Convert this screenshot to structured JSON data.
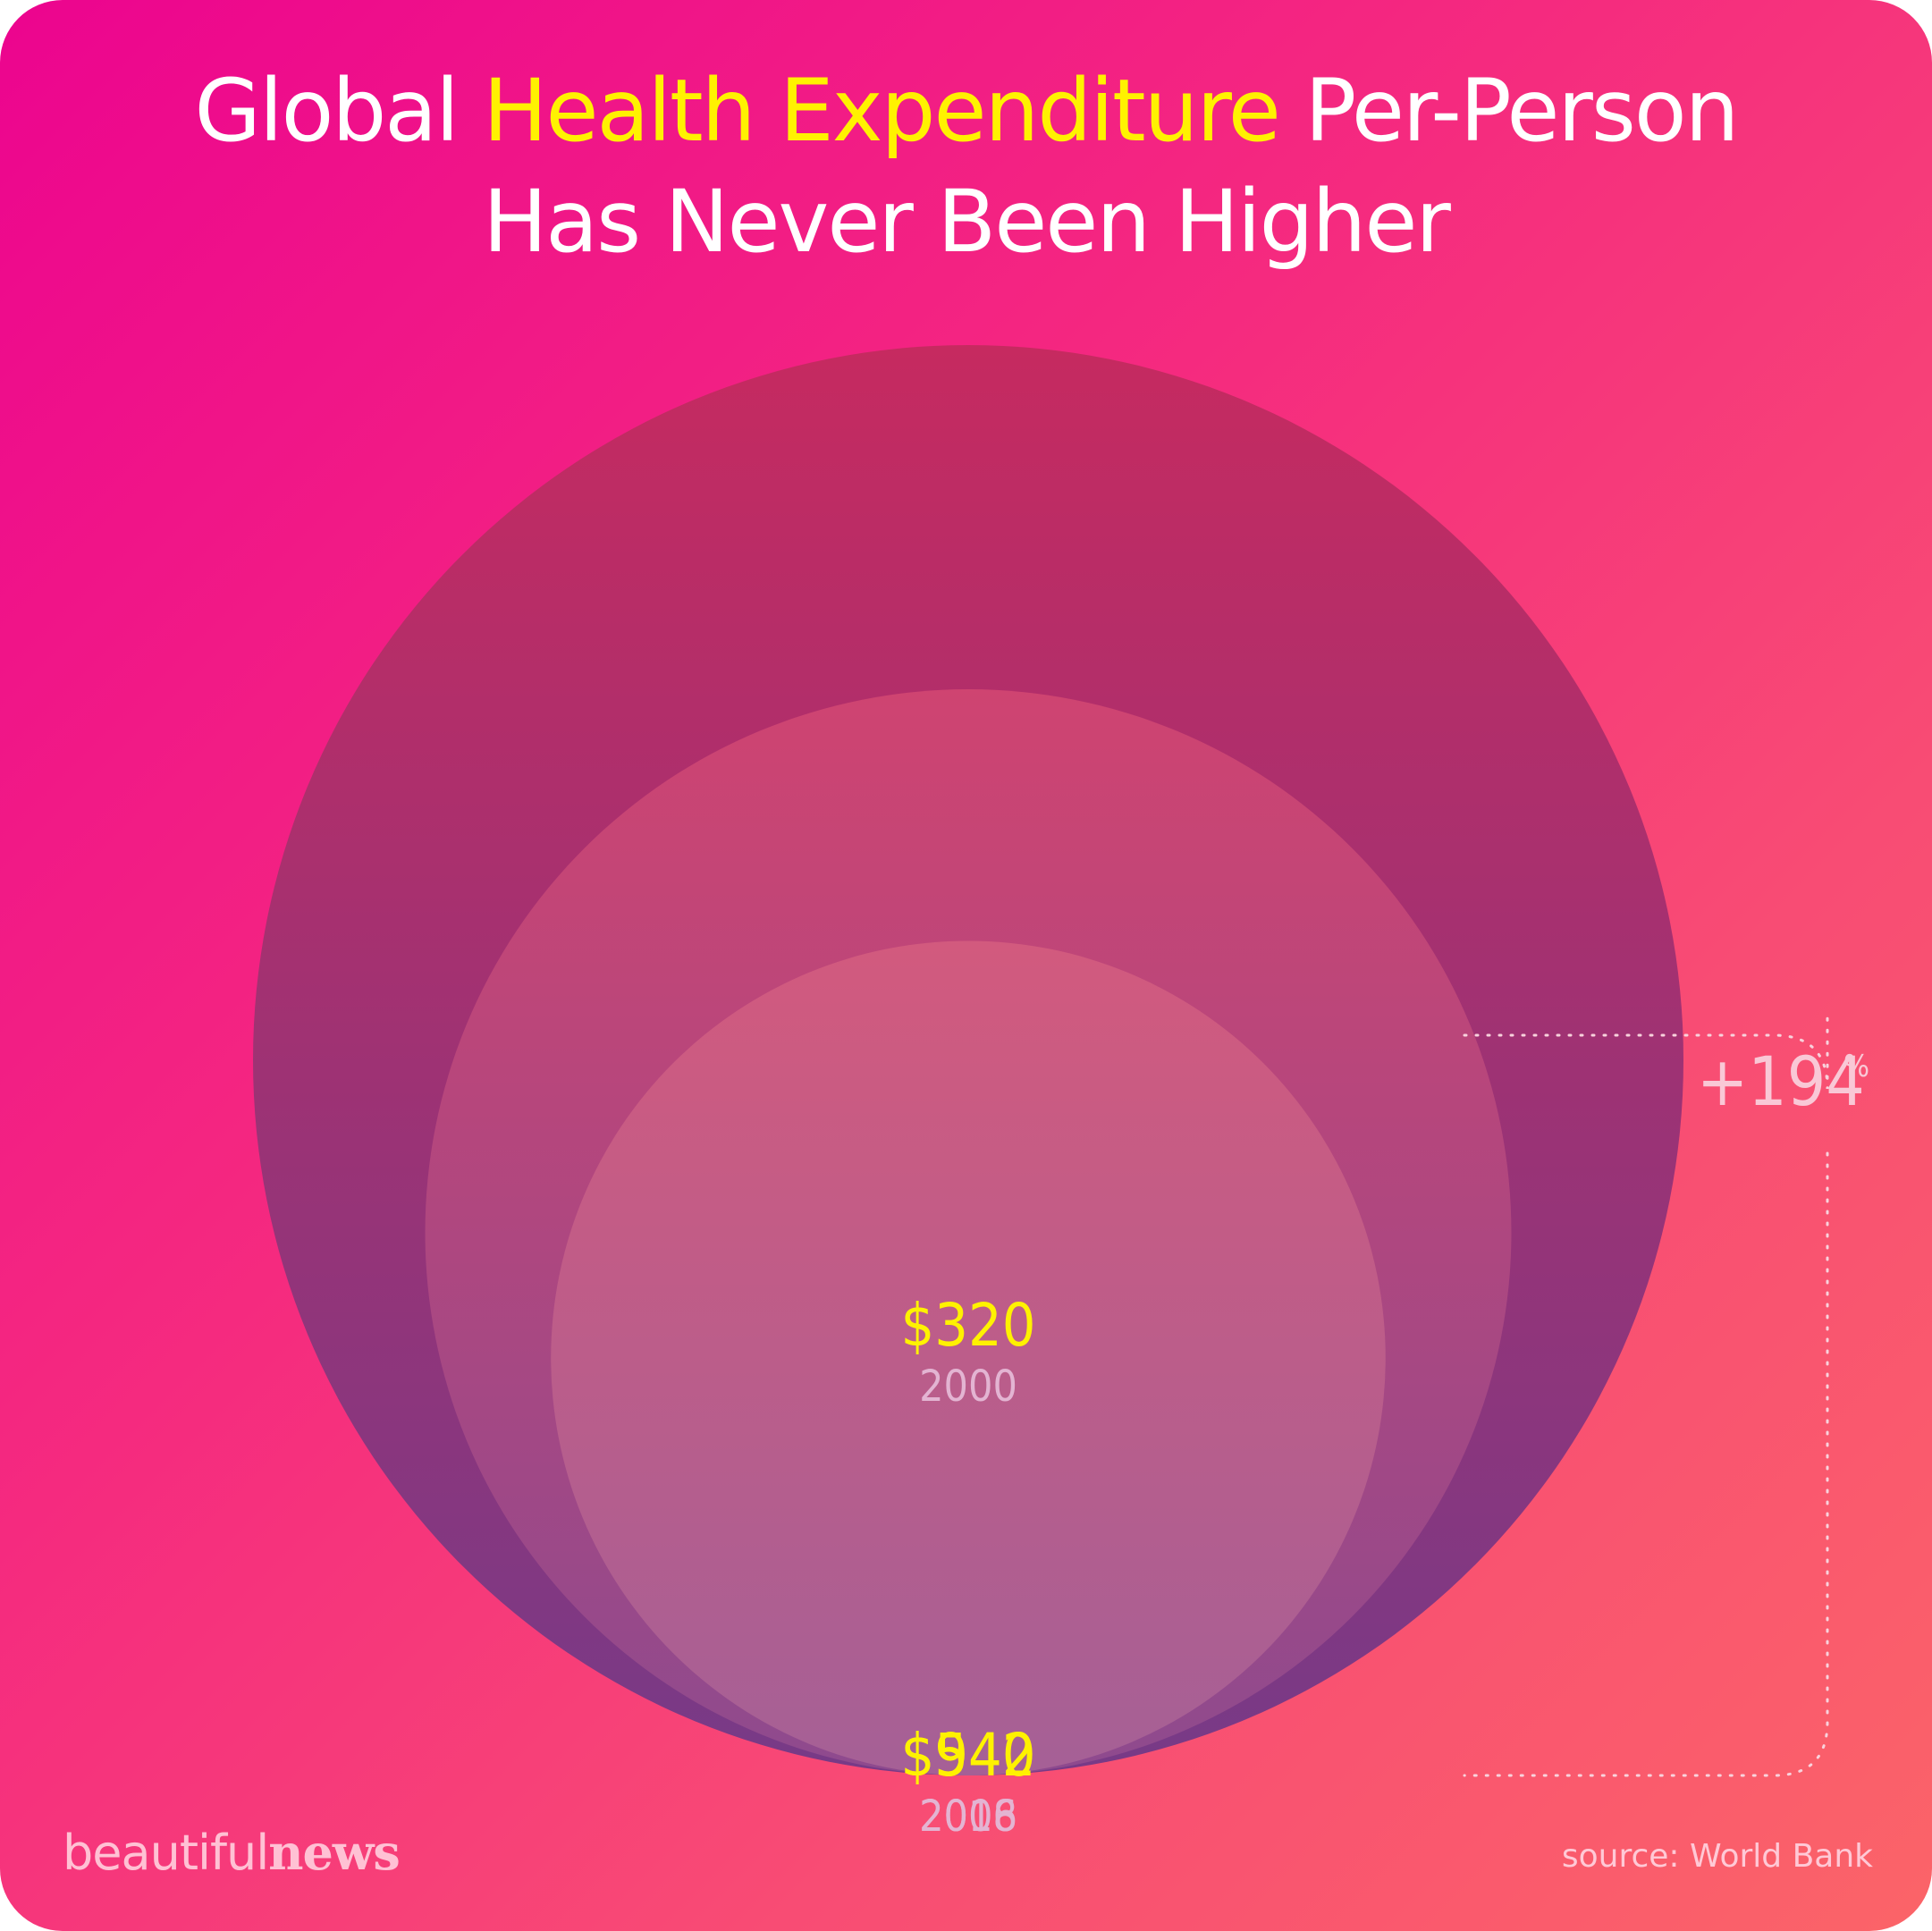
{
  "title": {
    "line1_pre": "Global ",
    "line1_highlight": "Health Expenditure",
    "line1_post": " Per-Person",
    "line2": "Has Never Been Higher"
  },
  "brand": {
    "light": "beautiful",
    "bold": "news"
  },
  "source": "source: World Bank",
  "colors": {
    "background_start": "#ec048f",
    "background_end": "#fb6468",
    "value_label": "#fff200",
    "year_label": "#e3b4d2",
    "circle_2016_top": "#c62a60",
    "circle_2016_bottom": "#773a87",
    "circle_2008_top": "#cf4471",
    "circle_2008_bottom": "#8e4a8e",
    "circle_2000_top": "#d25a7e",
    "circle_2000_bottom": "#a56096"
  },
  "chart_data": {
    "type": "nested-bubble",
    "unit": "USD per person",
    "points": [
      {
        "year": "2016",
        "value": 940,
        "label": "$940"
      },
      {
        "year": "2008",
        "value": 542,
        "label": "$542"
      },
      {
        "year": "2000",
        "value": 320,
        "label": "$320"
      }
    ],
    "change": {
      "value": "+194",
      "unit": "%"
    }
  }
}
